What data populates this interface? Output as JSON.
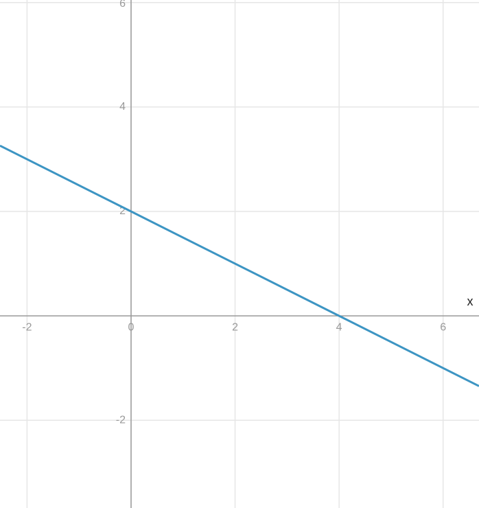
{
  "chart_data": {
    "type": "line",
    "x": [
      -2.52,
      0,
      4,
      6.69
    ],
    "series": [
      {
        "color": "#3d95c3",
        "values": [
          3.26,
          2,
          0,
          -1.345
        ]
      }
    ],
    "xlim": [
      -2.52,
      6.69
    ],
    "ylim": [
      -3.68,
      6.05
    ],
    "xticks": [
      -2,
      0,
      2,
      4,
      6
    ],
    "yticks": [
      -2,
      2,
      4,
      6
    ],
    "xlabel": "x",
    "grid": true
  }
}
